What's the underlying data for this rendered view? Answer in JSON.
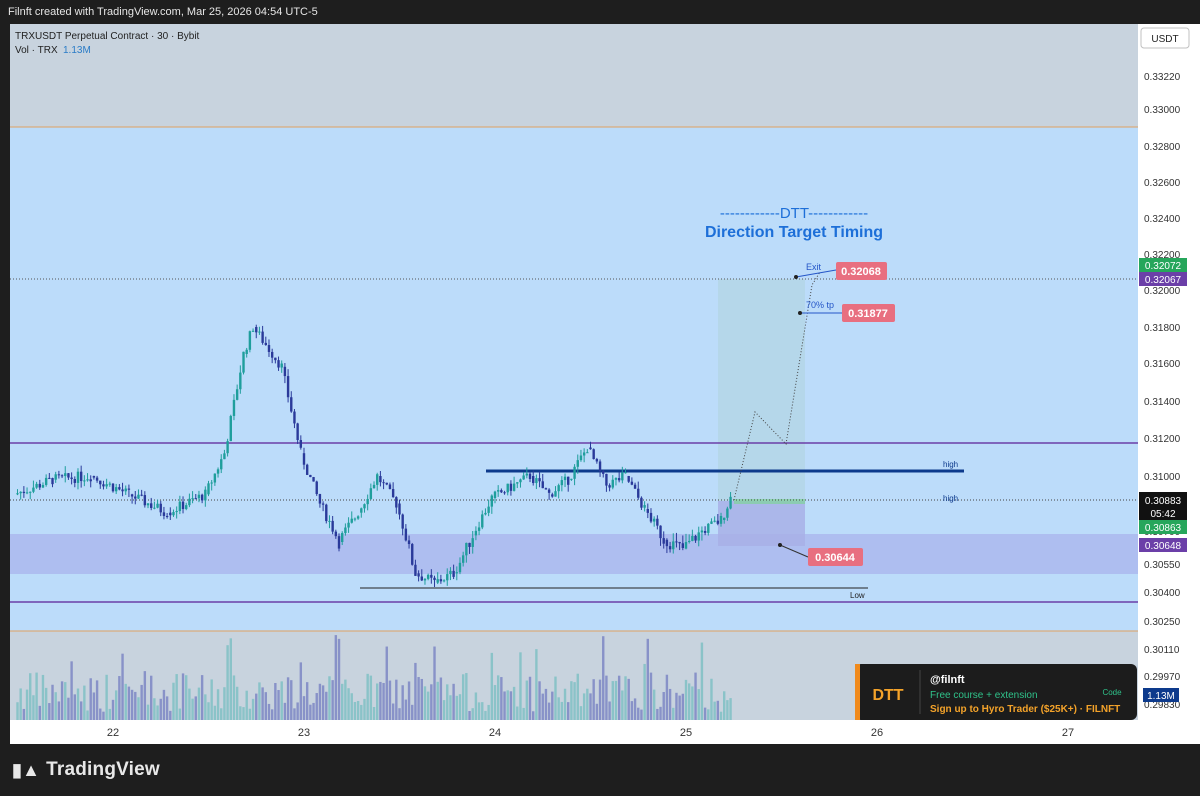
{
  "header": {
    "attribution": "Filnft created with TradingView.com, Mar 25, 2026 04:54 UTC-5"
  },
  "legend": {
    "symbol_line": "TRXUSDT Perpetual Contract · 30 · Bybit",
    "vol_label": "Vol · TRX",
    "vol_value": "1.13M"
  },
  "currency_button": "USDT",
  "branding": {
    "logo_text": "TradingView"
  },
  "annotation": {
    "title_line": "------------DTT------------",
    "subtitle": "Direction Target Timing"
  },
  "labels": {
    "exit": "Exit",
    "tp": "70% tp",
    "high1": "high",
    "high2": "high",
    "low": "Low"
  },
  "callouts": {
    "exit_price": "0.32068",
    "tp_price": "0.31877",
    "stop_price": "0.30644"
  },
  "price_tags": {
    "last": "0.30883",
    "countdown": "05:42",
    "green_top": "0.32072",
    "purple_top": "0.32067",
    "green_low": "0.30863",
    "purple_low": "0.30648",
    "volume": "1.13M"
  },
  "promo": {
    "logo": "DTT",
    "handle": "@filnft",
    "line1": "Free course + extension",
    "line2": "Sign up to Hyro Trader ($25K+) · FILNFT",
    "code_label": "Code"
  },
  "colors": {
    "up": "#1f9e9c",
    "down": "#2a3a9a",
    "bg": "#bcdcfa",
    "zone_gray": "#c8d3de",
    "purple_zone": "#a9b4ec",
    "accent_blue": "#1d6fd8",
    "callout_red": "#e86f80"
  },
  "chart_data": {
    "type": "candlestick",
    "y_ticks": [
      "0.33220",
      "0.33000",
      "0.32800",
      "0.32600",
      "0.32400",
      "0.32200",
      "0.32000",
      "0.31800",
      "0.31600",
      "0.31400",
      "0.31200",
      "0.31000",
      "0.30700",
      "0.30550",
      "0.30400",
      "0.30250",
      "0.30110",
      "0.29970",
      "0.29830"
    ],
    "x_ticks": [
      "22",
      "23",
      "24",
      "25",
      "26",
      "27"
    ],
    "ylim": [
      0.2977,
      0.335
    ],
    "levels": {
      "top_zone_low": 0.329,
      "resistance_purple": 0.3118,
      "support_purple": 0.3035,
      "high_line": 0.3104,
      "last_price": 0.30883,
      "low_line": 0.3043,
      "purple_zone": [
        0.305,
        0.307
      ]
    },
    "series": [
      {
        "name": "TRXUSDT",
        "values": [
          {
            "t": "21.5",
            "o": 0.309,
            "h": 0.3102,
            "l": 0.3082,
            "c": 0.3098
          },
          {
            "t": "21.7",
            "o": 0.3098,
            "h": 0.311,
            "l": 0.3088,
            "c": 0.31
          },
          {
            "t": "21.9",
            "o": 0.31,
            "h": 0.3124,
            "l": 0.3086,
            "c": 0.309
          },
          {
            "t": "22.1",
            "o": 0.309,
            "h": 0.3098,
            "l": 0.3076,
            "c": 0.308
          },
          {
            "t": "22.3",
            "o": 0.308,
            "h": 0.3095,
            "l": 0.3076,
            "c": 0.309
          },
          {
            "t": "22.5",
            "o": 0.309,
            "h": 0.3115,
            "l": 0.3082,
            "c": 0.3112
          },
          {
            "t": "22.6",
            "o": 0.3112,
            "h": 0.3172,
            "l": 0.311,
            "c": 0.3165
          },
          {
            "t": "22.7",
            "o": 0.3165,
            "h": 0.3188,
            "l": 0.3158,
            "c": 0.318
          },
          {
            "t": "22.75",
            "o": 0.318,
            "h": 0.3186,
            "l": 0.315,
            "c": 0.3158
          },
          {
            "t": "22.9",
            "o": 0.3158,
            "h": 0.316,
            "l": 0.311,
            "c": 0.3112
          },
          {
            "t": "23.0",
            "o": 0.3112,
            "h": 0.3116,
            "l": 0.3078,
            "c": 0.3085
          },
          {
            "t": "23.1",
            "o": 0.3085,
            "h": 0.309,
            "l": 0.306,
            "c": 0.3065
          },
          {
            "t": "23.2",
            "o": 0.3065,
            "h": 0.3085,
            "l": 0.3058,
            "c": 0.308
          },
          {
            "t": "23.3",
            "o": 0.308,
            "h": 0.311,
            "l": 0.306,
            "c": 0.31
          },
          {
            "t": "23.4",
            "o": 0.31,
            "h": 0.311,
            "l": 0.3075,
            "c": 0.3085
          },
          {
            "t": "23.5",
            "o": 0.3085,
            "h": 0.3088,
            "l": 0.3045,
            "c": 0.305
          },
          {
            "t": "23.6",
            "o": 0.305,
            "h": 0.3058,
            "l": 0.3038,
            "c": 0.3045
          },
          {
            "t": "23.7",
            "o": 0.3045,
            "h": 0.3055,
            "l": 0.3035,
            "c": 0.305
          },
          {
            "t": "23.8",
            "o": 0.305,
            "h": 0.307,
            "l": 0.3045,
            "c": 0.3068
          },
          {
            "t": "23.9",
            "o": 0.3068,
            "h": 0.309,
            "l": 0.3062,
            "c": 0.3088
          },
          {
            "t": "24.0",
            "o": 0.3088,
            "h": 0.3105,
            "l": 0.3082,
            "c": 0.31
          },
          {
            "t": "24.2",
            "o": 0.31,
            "h": 0.3108,
            "l": 0.3082,
            "c": 0.309
          },
          {
            "t": "24.3",
            "o": 0.309,
            "h": 0.3102,
            "l": 0.3086,
            "c": 0.3098
          },
          {
            "t": "24.4",
            "o": 0.3098,
            "h": 0.312,
            "l": 0.3095,
            "c": 0.3115
          },
          {
            "t": "24.5",
            "o": 0.3115,
            "h": 0.3118,
            "l": 0.309,
            "c": 0.3095
          },
          {
            "t": "24.6",
            "o": 0.3095,
            "h": 0.3108,
            "l": 0.3088,
            "c": 0.31
          },
          {
            "t": "24.7",
            "o": 0.31,
            "h": 0.3102,
            "l": 0.308,
            "c": 0.3082
          },
          {
            "t": "24.8",
            "o": 0.3082,
            "h": 0.3085,
            "l": 0.3062,
            "c": 0.3066
          },
          {
            "t": "24.9",
            "o": 0.3066,
            "h": 0.3072,
            "l": 0.3054,
            "c": 0.3062
          },
          {
            "t": "25.0",
            "o": 0.3062,
            "h": 0.3074,
            "l": 0.3058,
            "c": 0.307
          },
          {
            "t": "25.1",
            "o": 0.307,
            "h": 0.308,
            "l": 0.3066,
            "c": 0.3076
          },
          {
            "t": "25.2",
            "o": 0.3076,
            "h": 0.3092,
            "l": 0.3074,
            "c": 0.3088
          }
        ]
      }
    ]
  }
}
